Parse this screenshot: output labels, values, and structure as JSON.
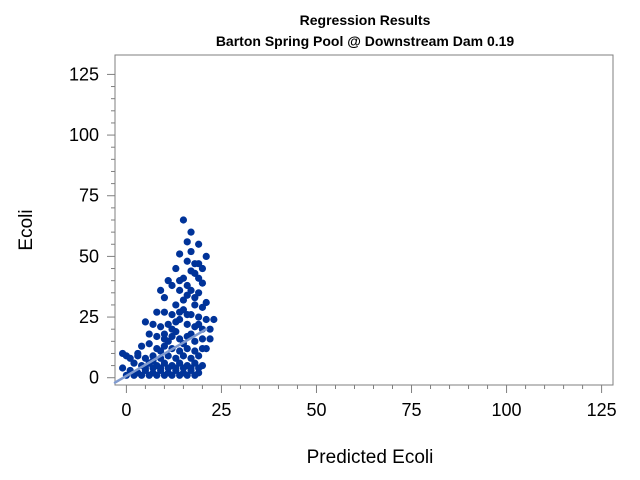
{
  "chart_data": {
    "type": "scatter",
    "title": "Regression Results",
    "subtitle": "Barton Spring Pool @ Downstream Dam 0.19",
    "xlabel": "Predicted Ecoli",
    "ylabel": "Ecoli",
    "xlim": [
      -3,
      128
    ],
    "ylim": [
      -3,
      133
    ],
    "xticks": [
      0,
      25,
      50,
      75,
      100,
      125
    ],
    "yticks": [
      0,
      25,
      50,
      75,
      100,
      125
    ],
    "minor_ticks": true,
    "grid": false,
    "colors": {
      "points": "#003399",
      "fit_line": "#7F9ACF",
      "frame": "#7f7f7f"
    },
    "series": [
      {
        "type": "scatter",
        "points": [
          [
            15,
            65
          ],
          [
            17,
            60
          ],
          [
            16,
            56
          ],
          [
            19,
            55
          ],
          [
            21,
            50
          ],
          [
            19,
            47
          ],
          [
            14,
            51
          ],
          [
            20,
            45
          ],
          [
            13,
            45
          ],
          [
            16,
            48
          ],
          [
            18,
            47
          ],
          [
            17,
            52
          ],
          [
            11,
            40
          ],
          [
            12,
            38
          ],
          [
            9,
            36
          ],
          [
            10,
            33
          ],
          [
            15,
            41
          ],
          [
            17,
            44
          ],
          [
            18,
            43
          ],
          [
            20,
            39
          ],
          [
            14,
            36
          ],
          [
            16,
            34
          ],
          [
            19,
            35
          ],
          [
            21,
            31
          ],
          [
            13,
            30
          ],
          [
            15,
            28
          ],
          [
            18,
            30
          ],
          [
            20,
            29
          ],
          [
            8,
            27
          ],
          [
            10,
            27
          ],
          [
            12,
            26
          ],
          [
            14,
            27
          ],
          [
            17,
            26
          ],
          [
            19,
            25
          ],
          [
            21,
            24
          ],
          [
            23,
            24
          ],
          [
            5,
            23
          ],
          [
            7,
            22
          ],
          [
            9,
            21
          ],
          [
            11,
            22
          ],
          [
            13,
            23
          ],
          [
            16,
            22
          ],
          [
            18,
            21
          ],
          [
            20,
            20
          ],
          [
            22,
            20
          ],
          [
            6,
            18
          ],
          [
            8,
            17
          ],
          [
            10,
            18
          ],
          [
            12,
            17
          ],
          [
            14,
            16
          ],
          [
            16,
            17
          ],
          [
            18,
            15
          ],
          [
            20,
            16
          ],
          [
            4,
            13
          ],
          [
            6,
            14
          ],
          [
            8,
            12
          ],
          [
            10,
            13
          ],
          [
            12,
            12
          ],
          [
            14,
            11
          ],
          [
            16,
            12
          ],
          [
            18,
            11
          ],
          [
            20,
            12
          ],
          [
            3,
            9
          ],
          [
            5,
            8
          ],
          [
            7,
            9
          ],
          [
            9,
            8
          ],
          [
            11,
            9
          ],
          [
            13,
            8
          ],
          [
            15,
            9
          ],
          [
            17,
            8
          ],
          [
            19,
            9
          ],
          [
            2,
            6
          ],
          [
            4,
            5
          ],
          [
            6,
            6
          ],
          [
            8,
            5
          ],
          [
            10,
            6
          ],
          [
            12,
            5
          ],
          [
            14,
            6
          ],
          [
            16,
            5
          ],
          [
            18,
            6
          ],
          [
            20,
            5
          ],
          [
            1,
            3
          ],
          [
            3,
            2
          ],
          [
            5,
            3
          ],
          [
            7,
            2
          ],
          [
            9,
            3
          ],
          [
            11,
            2
          ],
          [
            13,
            3
          ],
          [
            15,
            2
          ],
          [
            17,
            3
          ],
          [
            19,
            2
          ],
          [
            0,
            1
          ],
          [
            2,
            1
          ],
          [
            4,
            1
          ],
          [
            6,
            1
          ],
          [
            8,
            1
          ],
          [
            10,
            1
          ],
          [
            12,
            1
          ],
          [
            14,
            1
          ],
          [
            16,
            1
          ],
          [
            18,
            1
          ],
          [
            -1,
            10
          ],
          [
            0,
            9
          ],
          [
            1,
            8
          ],
          [
            -1,
            4
          ],
          [
            3,
            10
          ],
          [
            5,
            4
          ],
          [
            7,
            4
          ],
          [
            9,
            4
          ],
          [
            11,
            4
          ],
          [
            13,
            4
          ],
          [
            15,
            4
          ],
          [
            17,
            4
          ],
          [
            19,
            4
          ],
          [
            21,
            12
          ],
          [
            22,
            16
          ],
          [
            15,
            14
          ],
          [
            13,
            19
          ],
          [
            11,
            15
          ],
          [
            9,
            11
          ],
          [
            7,
            7
          ],
          [
            17,
            18
          ],
          [
            19,
            22
          ],
          [
            14,
            24
          ],
          [
            16,
            26
          ],
          [
            12,
            20
          ],
          [
            10,
            16
          ],
          [
            18,
            33
          ],
          [
            16,
            38
          ],
          [
            14,
            40
          ],
          [
            19,
            41
          ],
          [
            17,
            36
          ],
          [
            15,
            32
          ]
        ]
      },
      {
        "type": "line",
        "points": [
          [
            -3,
            -2
          ],
          [
            21,
            20
          ]
        ]
      }
    ]
  }
}
